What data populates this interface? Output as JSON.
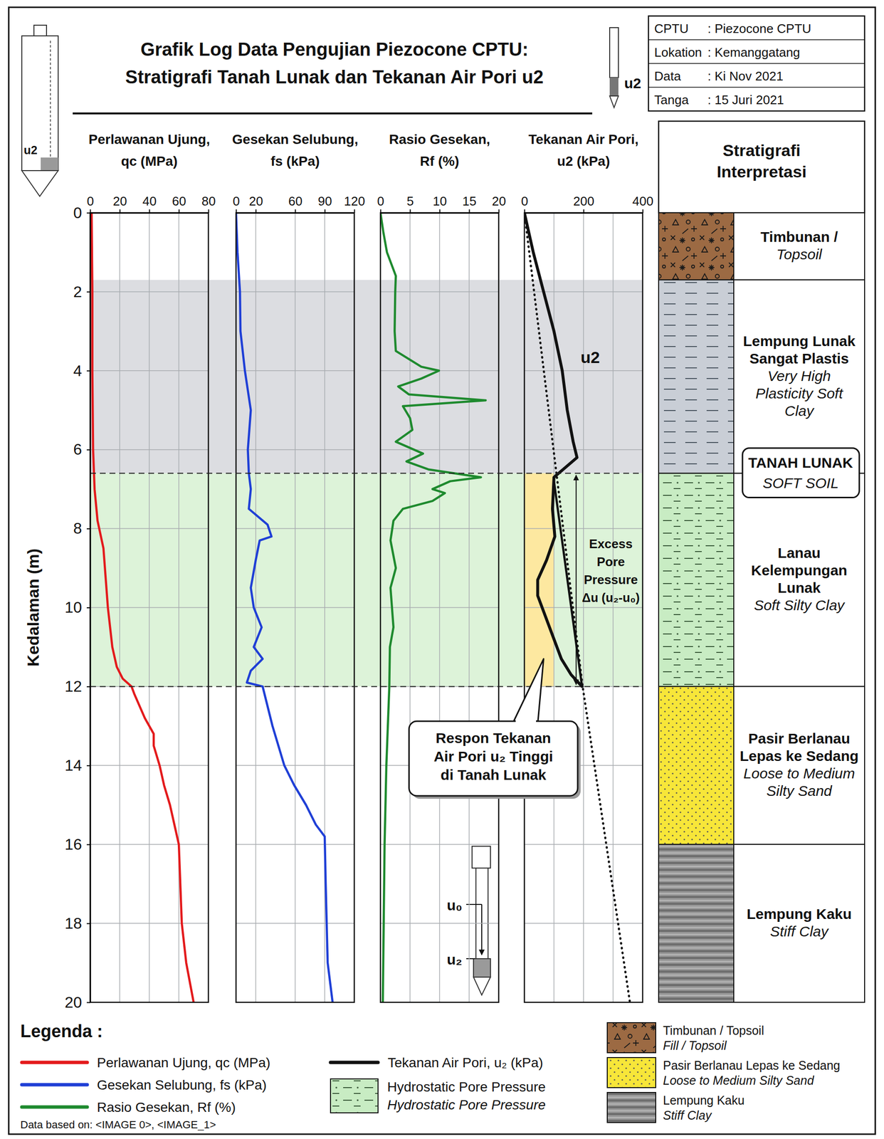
{
  "chart_data": {
    "type": "line",
    "title": [
      "Grafik Log Data Pengujian Piezocone CPTU:",
      "Stratigrafi Tanah Lunak dan Tekanan Air Pori u2"
    ],
    "info": [
      [
        "CPTU",
        ": Piezocone CPTU"
      ],
      [
        "Lokation",
        ": Kemanggatang"
      ],
      [
        "Data",
        ": Ki Nov 2021"
      ],
      [
        "Tanga",
        ": 15 Juri 2021"
      ]
    ],
    "icon_labels": [
      "u2",
      "u2",
      "u₀",
      "u₂"
    ],
    "y_label": "Kedalaman (m)",
    "ylim": [
      0,
      20
    ],
    "yticks": [
      0,
      2,
      4,
      6,
      8,
      10,
      12,
      14,
      16,
      18,
      20
    ],
    "grid": true,
    "zones": [
      {
        "from": 1.7,
        "to": 6.6,
        "color": "#dcdde1"
      },
      {
        "from": 6.6,
        "to": 12,
        "color": "#ddf3d9"
      }
    ],
    "panels": [
      {
        "title": [
          "Perlawanan Ujung,",
          "qc (MPa)"
        ],
        "xlim": [
          0,
          80
        ],
        "xticks": [
          0,
          20,
          40,
          60,
          80
        ],
        "series": [
          {
            "name": "Perlawanan Ujung, qc (MPa)",
            "color": "#e31a1c",
            "depth": [
              0,
              2,
              4,
              6,
              7,
              7.8,
              8.5,
              10,
              11,
              11.5,
              11.8,
              12,
              12.2,
              12.8,
              13.2,
              13.5,
              14,
              14.5,
              15,
              15.5,
              16,
              18,
              19,
              20
            ],
            "values": [
              1,
              1.5,
              1.5,
              2,
              3,
              5,
              9,
              12,
              15,
              18,
              22,
              28,
              30,
              37,
              43,
              43,
              47,
              50,
              54,
              57,
              60,
              62,
              65,
              70
            ]
          }
        ]
      },
      {
        "title": [
          "Gesekan Selubung,",
          "fs (kPa)"
        ],
        "xlim": [
          0,
          120
        ],
        "xticks": [
          0,
          20,
          60,
          90,
          120
        ],
        "series": [
          {
            "name": "Gesekan Selubung, fs (kPa)",
            "color": "#1f3fd6",
            "depth": [
              0,
              1,
              2,
              3,
              4,
              4.5,
              5,
              6,
              6.6,
              7,
              7.5,
              7.9,
              8.2,
              8.3,
              8.8,
              9.5,
              10,
              10.5,
              11,
              11.3,
              11.6,
              11.9,
              12,
              13,
              14,
              14.5,
              15,
              15.5,
              15.8,
              17,
              19,
              20
            ],
            "values": [
              0,
              1.5,
              4,
              4.5,
              9,
              12,
              15,
              12,
              13,
              15,
              13,
              32,
              36,
              24,
              20,
              15,
              18,
              26,
              18,
              27,
              15,
              11,
              27,
              37,
              49,
              59,
              71,
              81,
              90,
              91,
              93,
              98
            ]
          }
        ]
      },
      {
        "title": [
          "Rasio Gesekan,",
          "Rf (%)"
        ],
        "xlim": [
          0,
          20
        ],
        "xticks": [
          0,
          5,
          10,
          15,
          20
        ],
        "series": [
          {
            "name": "Rasio Gesekan, Rf (%)",
            "color": "#1e8a2e",
            "depth": [
              0,
              0.5,
              1,
              1.6,
              2,
              3,
              3.5,
              3.9,
              4,
              4.2,
              4.4,
              4.6,
              4.75,
              4.9,
              5.2,
              5.5,
              5.8,
              6.1,
              6.3,
              6.5,
              6.7,
              6.8,
              7,
              7.1,
              7.3,
              7.5,
              7.8,
              8.3,
              9,
              9.5,
              10.5,
              11,
              12,
              14,
              16,
              20
            ],
            "values": [
              0,
              0.5,
              1.1,
              2.6,
              2.5,
              2.4,
              2.6,
              6.9,
              9.9,
              6.9,
              3,
              4.8,
              17.8,
              3.8,
              5,
              5.4,
              2.6,
              7.2,
              4.4,
              8.1,
              17,
              11.8,
              8.8,
              10.9,
              8.8,
              3.8,
              2.2,
              1.7,
              2.6,
              1.7,
              2.2,
              1.6,
              1.5,
              1,
              0.7,
              0.4
            ]
          }
        ]
      },
      {
        "title": [
          "Tekanan Air Pori,",
          "u2 (kPa)"
        ],
        "xlim": [
          0,
          400
        ],
        "xticks": [
          0,
          200,
          400
        ],
        "xminor": [
          100,
          300
        ],
        "highlight": {
          "ylim": [
            6.6,
            12
          ],
          "xlim": [
            0,
            100
          ],
          "color": "#fde8a0"
        },
        "series": [
          {
            "name": "Tekanan Air Pori, u₂ (kPa)",
            "color": "#111111",
            "depth": [
              0,
              1,
              2,
              3,
              4,
              5,
              5.8,
              6.2,
              6.7,
              7.5,
              8.2,
              8.8,
              9.3,
              9.7,
              10.2,
              10.8,
              11.3,
              11.7,
              12
            ],
            "values": [
              0,
              30,
              65,
              100,
              128,
              145,
              165,
              178,
              100,
              95,
              103,
              75,
              45,
              45,
              70,
              100,
              125,
              158,
              195
            ]
          },
          {
            "color": "#111111",
            "line_style": "solid",
            "depth": [
              6.8,
              12
            ],
            "values": [
              100,
              195
            ]
          },
          {
            "color": "#111111",
            "line_style": "dotted",
            "depth": [
              0,
              12,
              20
            ],
            "values": [
              0,
              197,
              357
            ]
          }
        ],
        "curve_label": "u2",
        "excess_label": [
          "Excess",
          "Pore",
          "Pressure",
          "Δu (u₂-u₀)"
        ],
        "callout": [
          "Respon Tekanan",
          "Air Pori u₂ Tinggi",
          "di Tanah Lunak"
        ]
      }
    ],
    "strat_title": [
      "Stratigrafi",
      "Interpretasi"
    ],
    "layers": [
      {
        "from": 0,
        "to": 1.7,
        "color": "#9c6a43",
        "label": [
          "Timbunan /"
        ],
        "label_en": [
          "Topsoil"
        ]
      },
      {
        "from": 1.7,
        "to": 6.6,
        "color": "#c9ced6",
        "label": [
          "Lempung Lunak",
          "Sangat Plastis"
        ],
        "label_en": [
          "Very High",
          "Plasticity Soft",
          "Clay"
        ]
      },
      {
        "from": 6.6,
        "to": 12,
        "color": "#c8ecc3",
        "label": [
          "Lanau",
          "Kelempungan",
          "Lunak"
        ],
        "label_en": [
          "Soft Silty Clay"
        ]
      },
      {
        "from": 12,
        "to": 16,
        "color": "#f7e639",
        "label": [
          "Pasir Berlanau",
          "Lepas ke Sedang"
        ],
        "label_en": [
          "Loose to Medium",
          "Silty Sand"
        ]
      },
      {
        "from": 16,
        "to": 20,
        "color": "#9a9a9a",
        "label": [
          "Lempung Kaku"
        ],
        "label_en": [
          "Stiff Clay"
        ]
      }
    ],
    "soft_soil_label": [
      "TANAH LUNAK",
      "SOFT SOIL"
    ],
    "legend": "bottom",
    "legend_title": "Legenda :",
    "legend_items": [
      {
        "label": "Hydrostatic Pore Pressure",
        "label_en": "Hydrostatic Pore Pressure",
        "color": "#c8ecc3"
      },
      {
        "label": "Timbunan / Topsoil",
        "label_en": "Fill / Topsoil",
        "color": "#9c6a43"
      },
      {
        "label": "Pasir Berlanau Lepas ke Sedang",
        "label_en": "Loose to Medium Silty Sand",
        "color": "#f7e639"
      },
      {
        "label": "Lempung Kaku",
        "label_en": "Stiff Clay",
        "color": "#9a9a9a"
      }
    ],
    "source": "Data based on: <IMAGE 0>, <IMAGE_1>"
  }
}
